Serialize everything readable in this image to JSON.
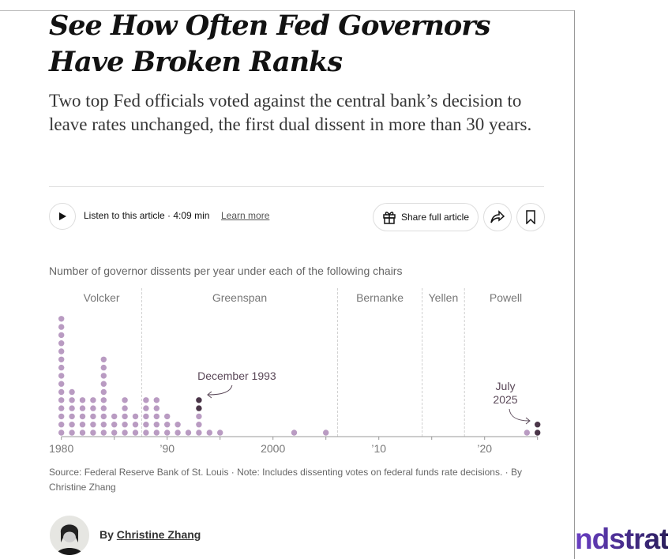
{
  "headline": "See How Often Fed Governors Have Broken Ranks",
  "summary": "Two top Fed officials voted against the central bank’s decision to leave rates unchanged, the first dual dissent in more than 30 years.",
  "toolbar": {
    "listen_label": "Listen to this article · 4:09 min",
    "learn_more": "Learn more",
    "share_label": "Share full article"
  },
  "chart_data": {
    "type": "dot-column",
    "title": "Number of governor dissents per year under each of the following chairs",
    "xlim": [
      1980,
      2025
    ],
    "x_ticks": [
      {
        "year": 1980,
        "label": "1980"
      },
      {
        "year": 1990,
        "label": "’90"
      },
      {
        "year": 2000,
        "label": "2000"
      },
      {
        "year": 2010,
        "label": "’10"
      },
      {
        "year": 2020,
        "label": "’20"
      }
    ],
    "chairs": [
      {
        "name": "Volcker",
        "start": 1980,
        "end": 1987.6
      },
      {
        "name": "Greenspan",
        "start": 1987.6,
        "end": 2006.1
      },
      {
        "name": "Bernanke",
        "start": 2006.1,
        "end": 2014.1
      },
      {
        "name": "Yellen",
        "start": 2014.1,
        "end": 2018.1
      },
      {
        "name": "Powell",
        "start": 2018.1,
        "end": 2025.9
      }
    ],
    "series": [
      {
        "year": 1980,
        "dissents": 15,
        "highlighted": 0
      },
      {
        "year": 1981,
        "dissents": 6,
        "highlighted": 0
      },
      {
        "year": 1982,
        "dissents": 5,
        "highlighted": 0
      },
      {
        "year": 1983,
        "dissents": 5,
        "highlighted": 0
      },
      {
        "year": 1984,
        "dissents": 10,
        "highlighted": 0
      },
      {
        "year": 1985,
        "dissents": 3,
        "highlighted": 0
      },
      {
        "year": 1986,
        "dissents": 5,
        "highlighted": 0
      },
      {
        "year": 1987,
        "dissents": 3,
        "highlighted": 0
      },
      {
        "year": 1988,
        "dissents": 5,
        "highlighted": 0
      },
      {
        "year": 1989,
        "dissents": 5,
        "highlighted": 0
      },
      {
        "year": 1990,
        "dissents": 3,
        "highlighted": 0
      },
      {
        "year": 1991,
        "dissents": 2,
        "highlighted": 0
      },
      {
        "year": 1992,
        "dissents": 1,
        "highlighted": 0
      },
      {
        "year": 1993,
        "dissents": 5,
        "highlighted": 2
      },
      {
        "year": 1994,
        "dissents": 1,
        "highlighted": 0
      },
      {
        "year": 1995,
        "dissents": 1,
        "highlighted": 0
      },
      {
        "year": 2002,
        "dissents": 1,
        "highlighted": 0
      },
      {
        "year": 2005,
        "dissents": 1,
        "highlighted": 0
      },
      {
        "year": 2024,
        "dissents": 1,
        "highlighted": 0
      },
      {
        "year": 2025,
        "dissents": 2,
        "highlighted": 2
      }
    ],
    "annotations": [
      {
        "year": 1993,
        "text": "December 1993"
      },
      {
        "year": 2025,
        "text_lines": [
          "July",
          "2025"
        ]
      }
    ],
    "colors": {
      "dot": "#b99bc2",
      "highlight": "#4a3548",
      "divider": "#d0d0d0",
      "axis": "#999999"
    }
  },
  "source_note": "Source: Federal Reserve Bank of St. Louis · Note: Includes dissenting votes on federal funds rate decisions. · By Christine Zhang",
  "byline": {
    "prefix": "By",
    "author": "Christine Zhang"
  },
  "logo_text": "ndstrat"
}
